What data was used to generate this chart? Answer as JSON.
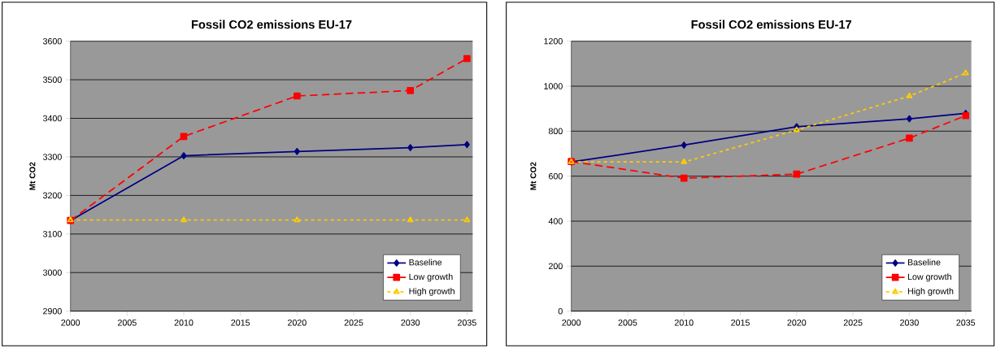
{
  "chart_data": [
    {
      "type": "line",
      "title": "Fossil CO2 emissions EU-17",
      "ylabel": "Mt CO2",
      "x": [
        2000,
        2010,
        2020,
        2030,
        2035
      ],
      "xlim": [
        2000,
        2035.5
      ],
      "xticks": [
        2000,
        2005,
        2010,
        2015,
        2020,
        2025,
        2030,
        2035
      ],
      "ylim": [
        2900,
        3600
      ],
      "yticks": [
        2900,
        3000,
        3100,
        3200,
        3300,
        3400,
        3500,
        3600
      ],
      "grid": "y",
      "legend": "bottom right",
      "series": [
        {
          "name": "Baseline",
          "color": "#000080",
          "marker": "diamond",
          "line_style": "solid",
          "values": [
            3135,
            3303,
            3314,
            3324,
            3332
          ]
        },
        {
          "name": "Low growth",
          "color": "#ff0000",
          "marker": "square",
          "line_style": "dashed",
          "values": [
            3135,
            3353,
            3458,
            3472,
            3555
          ]
        },
        {
          "name": "High growth",
          "color": "#ffcc00",
          "marker": "triangle",
          "line_style": "dotted",
          "values": [
            3136,
            3136,
            3136,
            3136,
            3136
          ]
        }
      ]
    },
    {
      "type": "line",
      "title": "Fossil CO2 emissions EU-17",
      "ylabel": "Mt CO2",
      "x": [
        2000,
        2010,
        2020,
        2030,
        2035
      ],
      "xlim": [
        2000,
        2035.5
      ],
      "xticks": [
        2000,
        2005,
        2010,
        2015,
        2020,
        2025,
        2030,
        2035
      ],
      "ylim": [
        0,
        1200
      ],
      "yticks": [
        0,
        200,
        400,
        600,
        800,
        1000,
        1200
      ],
      "grid": "y",
      "legend": "bottom right",
      "series": [
        {
          "name": "Baseline",
          "color": "#000080",
          "marker": "diamond",
          "line_style": "solid",
          "values": [
            663,
            738,
            820,
            855,
            879
          ]
        },
        {
          "name": "Low growth",
          "color": "#ff0000",
          "marker": "square",
          "line_style": "dashed",
          "values": [
            665,
            591,
            609,
            769,
            869
          ]
        },
        {
          "name": "High growth",
          "color": "#ffcc00",
          "marker": "triangle",
          "line_style": "dotted",
          "values": [
            663,
            663,
            805,
            956,
            1058
          ]
        }
      ]
    }
  ]
}
